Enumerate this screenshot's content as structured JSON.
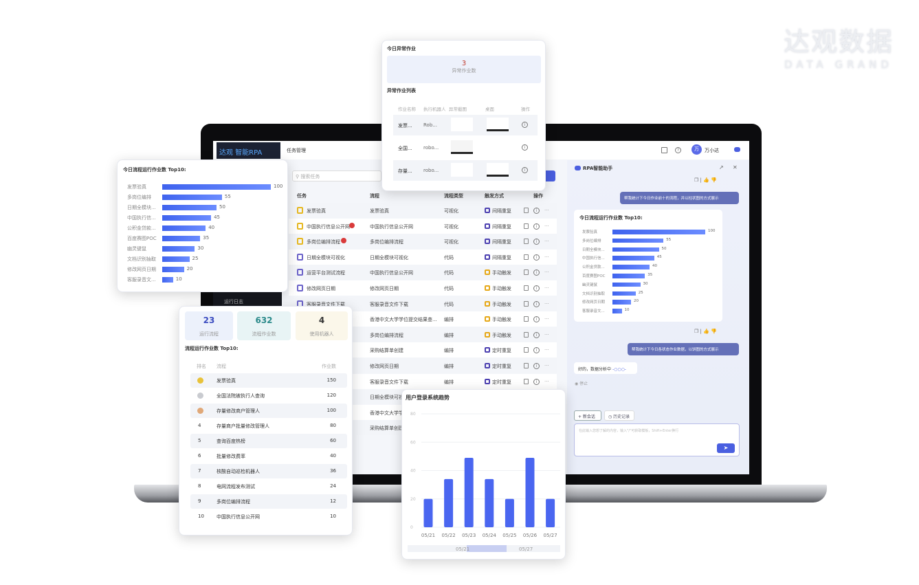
{
  "brand": {
    "logo_cn": "达观数据",
    "logo_en": "DATA GRAND"
  },
  "app": {
    "logo_text": "达观 智能RPA",
    "page_title": "任务管理",
    "search_placeholder": "搜索任务",
    "user_avatar": "万",
    "user_name": "万小达",
    "sidebar_item": "运行日志",
    "columns": [
      "任务",
      "流程",
      "流程类型",
      "触发方式",
      "操作"
    ],
    "trigger_colors": {
      "间隔重复": "#4b3fb0",
      "手动触发": "#e6a817",
      "定时重复": "#4b3fb0"
    },
    "rows": [
      {
        "task": "发票验真",
        "flow": "发票验真",
        "type": "可视化",
        "trigger": "间隔重复",
        "icon": "yellow"
      },
      {
        "task": "中国执行信息公开网",
        "flow": "中国执行信息公开网",
        "type": "可视化",
        "trigger": "间隔重复",
        "icon": "yellow",
        "badge": true
      },
      {
        "task": "多岗位编排流程",
        "flow": "多岗位编排流程",
        "type": "可视化",
        "trigger": "间隔重复",
        "icon": "yellow",
        "badge": true
      },
      {
        "task": "日期全模块可视化",
        "flow": "日期全模块可视化",
        "type": "代码",
        "trigger": "间隔重复",
        "icon": "purple"
      },
      {
        "task": "运营平台测试流程",
        "flow": "中国执行信息公开网",
        "type": "代码",
        "trigger": "手动触发",
        "icon": "purple"
      },
      {
        "task": "修改网页日期",
        "flow": "修改网页日期",
        "type": "代码",
        "trigger": "手动触发",
        "icon": "purple"
      },
      {
        "task": "客服录音文件下载",
        "flow": "客服录音文件下载",
        "type": "代码",
        "trigger": "手动触发",
        "icon": "purple"
      },
      {
        "task": "",
        "flow": "香港中文大学学位提交结果查...",
        "type": "编排",
        "trigger": "手动触发"
      },
      {
        "task": "",
        "flow": "多岗位编排流程",
        "type": "编排",
        "trigger": "手动触发"
      },
      {
        "task": "",
        "flow": "采购结算单创建",
        "type": "编排",
        "trigger": "定时重复"
      },
      {
        "task": "",
        "flow": "修改网页日期",
        "type": "编排",
        "trigger": "定时重复"
      },
      {
        "task": "",
        "flow": "客服录音文件下载",
        "type": "编排",
        "trigger": "定时重复"
      },
      {
        "task": "",
        "flow": "日期全模块可视",
        "type": "",
        "trigger": ""
      },
      {
        "task": "",
        "flow": "香港中文大学学",
        "type": "",
        "trigger": ""
      },
      {
        "task": "",
        "flow": "采购结算单创建",
        "type": "",
        "trigger": ""
      }
    ]
  },
  "top10": {
    "title": "今日流程运行作业数 Top10:",
    "items": [
      {
        "label": "发票验真",
        "value": 100
      },
      {
        "label": "多岗位编排",
        "value": 55
      },
      {
        "label": "日期全模块...",
        "value": 50
      },
      {
        "label": "中国执行信...",
        "value": 45
      },
      {
        "label": "公积金贷款...",
        "value": 40
      },
      {
        "label": "百度赛图POC",
        "value": 35
      },
      {
        "label": "幽灵键鼠",
        "value": 30
      },
      {
        "label": "文档识别抽取",
        "value": 25
      },
      {
        "label": "修改网页日期",
        "value": 20
      },
      {
        "label": "客服录音文...",
        "value": 10
      }
    ]
  },
  "stats": {
    "cards": [
      {
        "value": "23",
        "label": "运行流程",
        "color": "#3b4cc0"
      },
      {
        "value": "632",
        "label": "流程作业数",
        "color": "#2a8a8a"
      },
      {
        "value": "4",
        "label": "使用机器人",
        "color": "#333333"
      }
    ],
    "rank_title": "流程运行作业数 Top10:",
    "rank_headers": [
      "排名",
      "流程",
      "作业数"
    ],
    "rank": [
      {
        "rank": "1",
        "flow": "发票验真",
        "count": "150",
        "medal": "#e8c23a"
      },
      {
        "rank": "2",
        "flow": "全国法院被执行人查询",
        "count": "120",
        "medal": "#c9cbd0"
      },
      {
        "rank": "3",
        "flow": "存量修改商户管理人",
        "count": "100",
        "medal": "#e0a878"
      },
      {
        "rank": "4",
        "flow": "存量商户批量修改管理人",
        "count": "80"
      },
      {
        "rank": "5",
        "flow": "查询百度热榜",
        "count": "60"
      },
      {
        "rank": "6",
        "flow": "批量修改费率",
        "count": "40"
      },
      {
        "rank": "7",
        "flow": "核酸自动巡检机器人",
        "count": "36"
      },
      {
        "rank": "8",
        "flow": "电网流程发布测试",
        "count": "24"
      },
      {
        "rank": "9",
        "flow": "多岗位编排流程",
        "count": "12"
      },
      {
        "rank": "10",
        "flow": "中国执行信息公开网",
        "count": "10"
      }
    ]
  },
  "exceptions": {
    "title": "今日异常作业",
    "count": "3",
    "count_label": "异常作业数",
    "list_title": "异常作业列表",
    "headers": [
      "作业名称",
      "执行机器人",
      "异常截图",
      "桌面",
      "操作"
    ],
    "rows": [
      {
        "name": "发票...",
        "robot": "Rob..."
      },
      {
        "name": "全国...",
        "robot": "robo..."
      },
      {
        "name": "存量...",
        "robot": "robo..."
      }
    ]
  },
  "chat": {
    "title": "RPA智能助手",
    "user_msg_1": "帮我统计下今日作业前十的流程，并以柱状图的方式展示",
    "user_msg_2": "帮我统计下今日各状态作业数据，以饼图的方式展示",
    "reply": "好的，数据分析中",
    "stop": "停止",
    "new_chat": "+ 新会话",
    "history": "历史记录",
    "input_placeholder": "在此输入您想了解的内容，输入\"/\"可获取模板，Shift+Enter换行"
  },
  "chart_data": {
    "type": "bar",
    "title": "用户登录系统趋势",
    "categories": [
      "05/21",
      "05/22",
      "05/23",
      "05/24",
      "05/25",
      "05/26",
      "05/27"
    ],
    "values": [
      20,
      34,
      49,
      34,
      20,
      49,
      20
    ],
    "ylim": [
      0,
      80
    ],
    "yticks": [
      0,
      20,
      40,
      60,
      80
    ],
    "grid": true,
    "slider_labels": [
      "05/21",
      "05/27"
    ],
    "color": "#4a66f0"
  }
}
